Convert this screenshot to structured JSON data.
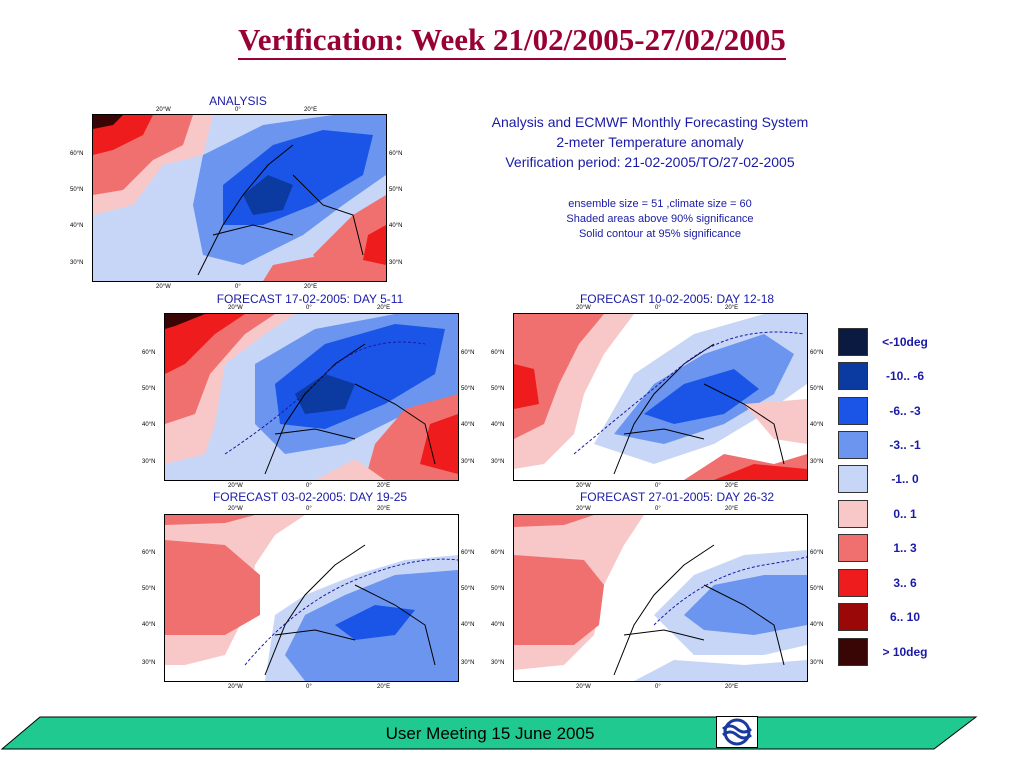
{
  "title": "Verification: Week 21/02/2005-27/02/2005",
  "info": {
    "line1": "Analysis and ECMWF Monthly Forecasting System",
    "line2": "2-meter Temperature anomaly",
    "line3": "Verification period: 21-02-2005/TO/27-02-2005",
    "line4": "ensemble size = 51   ,climate size = 60",
    "line5": "Shaded areas above 90% significance",
    "line6": "Solid contour at 95% significance"
  },
  "maps": [
    {
      "title": "ANALYSIS"
    },
    {
      "title": "FORECAST 17-02-2005: DAY 5-11"
    },
    {
      "title": "FORECAST 10-02-2005: DAY 12-18"
    },
    {
      "title": "FORECAST 03-02-2005: DAY 19-25"
    },
    {
      "title": "FORECAST 27-01-2005: DAY 26-32"
    }
  ],
  "ticks": {
    "lon": [
      "20°W",
      "0°",
      "20°E"
    ],
    "lat": [
      "60°N",
      "50°N",
      "40°N",
      "30°N"
    ]
  },
  "legend": [
    {
      "label": "<-10deg",
      "color": "#0a1a40"
    },
    {
      "label": "-10.. -6",
      "color": "#0b3aa0"
    },
    {
      "label": "-6.. -3",
      "color": "#1a55e8"
    },
    {
      "label": "-3.. -1",
      "color": "#6b95ee"
    },
    {
      "label": "-1..  0",
      "color": "#c7d6f7"
    },
    {
      "label": "0..  1",
      "color": "#f8c8c8"
    },
    {
      "label": "1..  3",
      "color": "#f07070"
    },
    {
      "label": "3..  6",
      "color": "#ee1c1c"
    },
    {
      "label": "6.. 10",
      "color": "#9a0808"
    },
    {
      "label": ">  10deg",
      "color": "#3a0505"
    }
  ],
  "footer": {
    "text": "User Meeting 15 June 2005",
    "band_color": "#1fc98f",
    "logo": "ecmwf-logo-icon"
  }
}
